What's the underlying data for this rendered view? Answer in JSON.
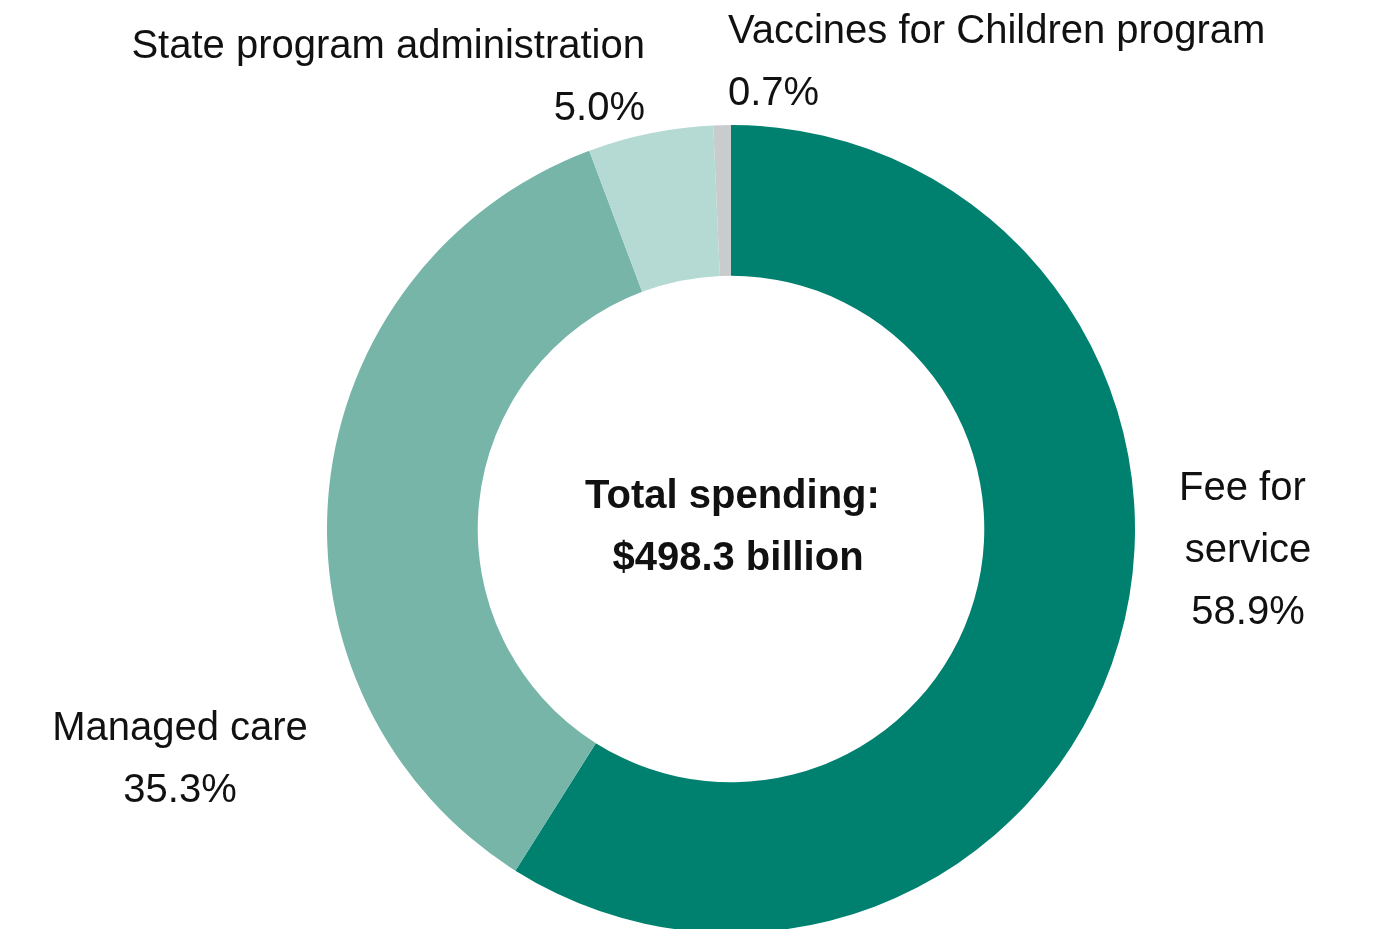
{
  "chart_data": {
    "type": "donut",
    "title": "Total spending: $498.3 billion",
    "categories": [
      "Fee for service",
      "Managed care",
      "State program administration",
      "Vaccines for Children program"
    ],
    "values": [
      58.9,
      35.3,
      5.0,
      0.7
    ],
    "colors": [
      "#00806f",
      "#76b5a8",
      "#b5dad3",
      "#c8cccc"
    ],
    "value_labels": [
      "58.9%",
      "35.3%",
      "5.0%",
      "0.7%"
    ],
    "legend": false
  }
}
